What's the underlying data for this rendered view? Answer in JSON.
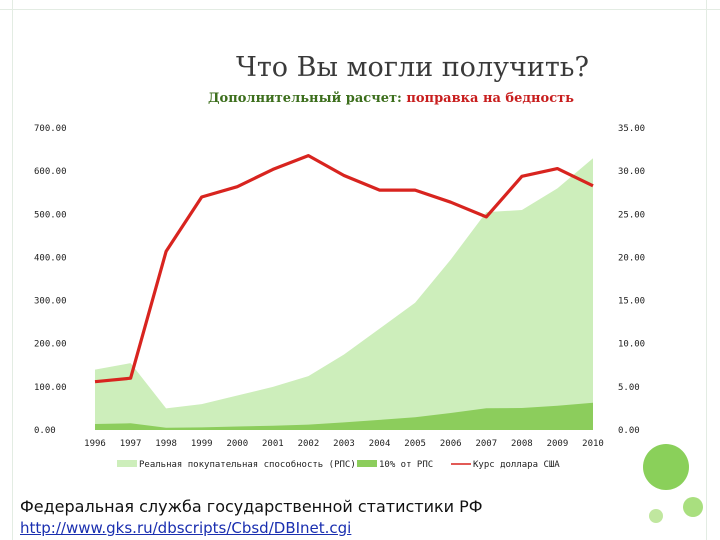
{
  "slide": {
    "title": "Что Вы могли получить?",
    "subtitle_lead": "Дополнительный расчет: ",
    "subtitle_accent": "поправка на бедность",
    "source": "Федеральная служба государственной статистики РФ",
    "link": "http://www.gks.ru/dbscripts/Cbsd/DBInet.cgi"
  },
  "chart_data": {
    "type": "area",
    "categories": [
      "1996",
      "1997",
      "1998",
      "1999",
      "2000",
      "2001",
      "2002",
      "2003",
      "2004",
      "2005",
      "2006",
      "2007",
      "2008",
      "2009",
      "2010"
    ],
    "y_left": {
      "range": [
        0,
        700
      ],
      "ticks": [
        "0.00",
        "100.00",
        "200.00",
        "300.00",
        "400.00",
        "500.00",
        "600.00",
        "700.00"
      ]
    },
    "y_right": {
      "range": [
        0,
        35
      ],
      "ticks": [
        "0.00",
        "5.00",
        "10.00",
        "15.00",
        "20.00",
        "25.00",
        "30.00",
        "35.00"
      ]
    },
    "series": [
      {
        "name": "Реальная покупательная способность (РПС)",
        "kind": "area",
        "axis": "left",
        "color": "#cdeebb",
        "values": [
          140,
          155,
          50,
          60,
          80,
          100,
          125,
          175,
          235,
          295,
          395,
          505,
          510,
          560,
          630
        ]
      },
      {
        "name": "10% от РПС",
        "kind": "area",
        "axis": "left",
        "color": "#8ccd5c",
        "values": [
          14,
          15.5,
          5,
          6,
          8,
          10,
          12.5,
          17.5,
          23.5,
          29.5,
          39.5,
          50.5,
          51,
          56,
          63
        ]
      },
      {
        "name": "Курс доллара США",
        "kind": "line",
        "axis": "right",
        "color": "#d8241f",
        "values": [
          5.6,
          6.0,
          20.7,
          27.0,
          28.2,
          30.2,
          31.8,
          29.5,
          27.8,
          27.8,
          26.4,
          24.7,
          29.4,
          30.3,
          28.3
        ]
      }
    ],
    "grid": false,
    "legend_position": "bottom"
  }
}
